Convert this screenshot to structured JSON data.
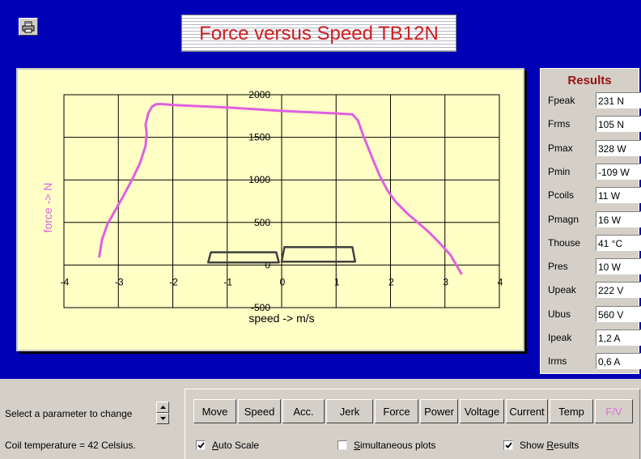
{
  "title": "Force versus Speed TB12N",
  "icons": {
    "print": "printer-icon",
    "spin_up": "arrow-up-icon",
    "spin_down": "arrow-down-icon",
    "check": "check-icon"
  },
  "colors": {
    "background": "#0000b4",
    "plot_bg": "#ffffc6",
    "curve": "#e060e0",
    "title": "#cc2020",
    "results_title": "#9b1010"
  },
  "chart_data": {
    "type": "line",
    "xlabel": "speed -> m/s",
    "ylabel": "force -> N",
    "xlim": [
      -4,
      4
    ],
    "ylim": [
      -500,
      2000
    ],
    "x_ticks": [
      -4,
      -3,
      -2,
      -1,
      0,
      1,
      2,
      3,
      4
    ],
    "y_ticks": [
      -500,
      0,
      500,
      1000,
      1500,
      2000
    ],
    "grid": true,
    "series": [
      {
        "name": "",
        "color": "#e060e0",
        "x": [
          -3.35,
          -3.3,
          -3.2,
          -3.05,
          -2.9,
          -2.75,
          -2.6,
          -2.5,
          -2.48,
          -2.5,
          -2.45,
          -2.38,
          -2.3,
          -2.2,
          -2.0,
          -1.0,
          0.0,
          1.0,
          1.3,
          1.4,
          1.5,
          1.65,
          1.8,
          1.95,
          2.1,
          2.3,
          2.5,
          2.7,
          2.9,
          3.1,
          3.3
        ],
        "y": [
          100,
          300,
          480,
          650,
          820,
          1000,
          1200,
          1400,
          1550,
          1650,
          1780,
          1860,
          1890,
          1890,
          1880,
          1850,
          1810,
          1780,
          1770,
          1700,
          1520,
          1280,
          1050,
          870,
          740,
          610,
          500,
          390,
          260,
          120,
          -100
        ]
      },
      {
        "name": "",
        "color": "#404040",
        "x": [
          -1.3,
          -0.1,
          -0.05,
          -1.35,
          -1.3
        ],
        "y": [
          150,
          150,
          30,
          30,
          150
        ]
      },
      {
        "name": "",
        "color": "#404040",
        "x": [
          0.05,
          1.3,
          1.35,
          0.0,
          0.05
        ],
        "y": [
          210,
          210,
          40,
          40,
          210
        ]
      }
    ]
  },
  "results": {
    "title": "Results",
    "rows": [
      {
        "label": "Fpeak",
        "value": "231 N"
      },
      {
        "label": "Frms",
        "value": "105 N"
      },
      {
        "label": "Pmax",
        "value": "328 W"
      },
      {
        "label": "Pmin",
        "value": "-109 W"
      },
      {
        "label": "Pcoils",
        "value": "11 W"
      },
      {
        "label": "Pmagn",
        "value": "16 W"
      },
      {
        "label": "Thouse",
        "value": "41 °C"
      },
      {
        "label": "Pres",
        "value": "10 W"
      },
      {
        "label": "Upeak",
        "value": "222 V"
      },
      {
        "label": "Ubus",
        "value": "560 V"
      },
      {
        "label": "Ipeak",
        "value": "1,2 A"
      },
      {
        "label": "Irms",
        "value": "0,6 A"
      }
    ]
  },
  "bottom": {
    "param_label": "Select a parameter to change",
    "coil_label": "Coil temperature = 42 Celsius.",
    "buttons": [
      "Move",
      "Speed",
      "Acc.",
      "Jerk",
      "Force",
      "Power",
      "Voltage",
      "Current",
      "Temp",
      "F/V"
    ],
    "checkboxes": [
      {
        "label": "Auto Scale",
        "checked": true
      },
      {
        "label": "Simultaneous plots",
        "checked": false
      },
      {
        "label": "Show Results",
        "checked": true
      }
    ]
  }
}
